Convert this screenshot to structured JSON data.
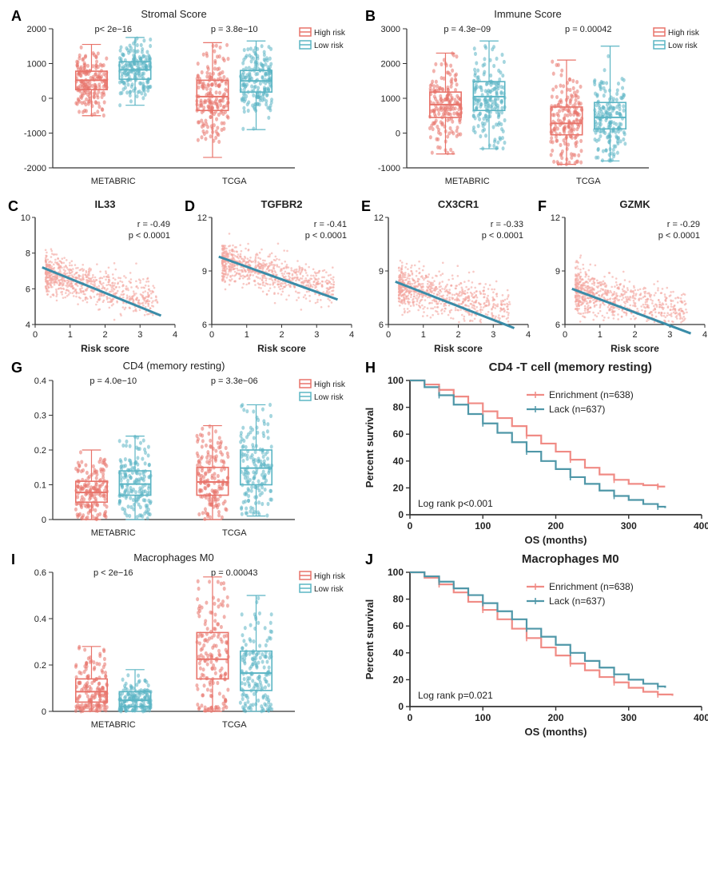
{
  "colors": {
    "high_risk": "#e8736a",
    "low_risk": "#5bb5c4",
    "high_risk_fill": "rgba(232,115,106,0.35)",
    "low_risk_fill": "rgba(91,181,196,0.35)",
    "scatter_point": "#f4a6a0",
    "regression_line": "#3a8ca8",
    "survival_enrich": "#f08b85",
    "survival_lack": "#4f97a8",
    "axis": "#333333",
    "text": "#222222",
    "bg": "#ffffff"
  },
  "fonts": {
    "panel_label": 18,
    "title": 13,
    "axis_label": 12,
    "tick": 11,
    "legend": 10,
    "p_value": 11,
    "stat": 11
  },
  "panels": {
    "A": {
      "type": "boxjitter",
      "title": "Stromal Score",
      "x_categories": [
        "METABRIC",
        "TCGA"
      ],
      "groups": [
        "High risk",
        "Low risk"
      ],
      "p_values": [
        "p< 2e−16",
        "p = 3.8e−10"
      ],
      "ylim": [
        -2000,
        2000
      ],
      "yticks": [
        -2000,
        -1000,
        0,
        1000,
        2000
      ],
      "box_data": {
        "METABRIC": {
          "High risk": {
            "q1": 250,
            "med": 520,
            "q3": 780,
            "whisker_lo": -500,
            "whisker_hi": 1550
          },
          "Low risk": {
            "q1": 550,
            "med": 820,
            "q3": 1050,
            "whisker_lo": -200,
            "whisker_hi": 1750
          }
        },
        "TCGA": {
          "High risk": {
            "q1": -350,
            "med": 50,
            "q3": 520,
            "whisker_lo": -1700,
            "whisker_hi": 1600
          },
          "Low risk": {
            "q1": 180,
            "med": 500,
            "q3": 800,
            "whisker_lo": -900,
            "whisker_hi": 1650
          }
        }
      },
      "n_points_per_group": 180
    },
    "B": {
      "type": "boxjitter",
      "title": "Immune Score",
      "x_categories": [
        "METABRIC",
        "TCGA"
      ],
      "groups": [
        "High risk",
        "Low risk"
      ],
      "p_values": [
        "p = 4.3e−09",
        "p = 0.00042"
      ],
      "ylim": [
        -1000,
        3000
      ],
      "yticks": [
        -1000,
        0,
        1000,
        2000,
        3000
      ],
      "box_data": {
        "METABRIC": {
          "High risk": {
            "q1": 450,
            "med": 820,
            "q3": 1180,
            "whisker_lo": -600,
            "whisker_hi": 2300
          },
          "Low risk": {
            "q1": 650,
            "med": 1050,
            "q3": 1480,
            "whisker_lo": -450,
            "whisker_hi": 2650
          }
        },
        "TCGA": {
          "High risk": {
            "q1": -50,
            "med": 280,
            "q3": 750,
            "whisker_lo": -900,
            "whisker_hi": 2100
          },
          "Low risk": {
            "q1": 120,
            "med": 450,
            "q3": 880,
            "whisker_lo": -800,
            "whisker_hi": 2500
          }
        }
      },
      "n_points_per_group": 180
    },
    "C": {
      "type": "scatter",
      "title": "IL33",
      "xlabel": "Risk score",
      "xlim": [
        0,
        4
      ],
      "xticks": [
        0,
        1,
        2,
        3,
        4
      ],
      "ylim": [
        4,
        10
      ],
      "yticks": [
        4,
        6,
        8,
        10
      ],
      "r": "r = -0.49",
      "p": "p < 0.0001",
      "line": {
        "x1": 0.2,
        "y1": 7.2,
        "x2": 3.6,
        "y2": 4.5
      },
      "n_points": 800,
      "cloud_yspread": 1.2,
      "cloud_ycenter_start": 7.0,
      "cloud_ycenter_end": 5.0
    },
    "D": {
      "type": "scatter",
      "title": "TGFBR2",
      "xlabel": "Risk score",
      "xlim": [
        0,
        4
      ],
      "xticks": [
        0,
        1,
        2,
        3,
        4
      ],
      "ylim": [
        6,
        12
      ],
      "yticks": [
        6,
        9,
        12
      ],
      "r": "r = -0.41",
      "p": "p < 0.0001",
      "line": {
        "x1": 0.2,
        "y1": 9.8,
        "x2": 3.6,
        "y2": 7.4
      },
      "n_points": 800,
      "cloud_yspread": 1.1,
      "cloud_ycenter_start": 9.7,
      "cloud_ycenter_end": 7.8
    },
    "E": {
      "type": "scatter",
      "title": "CX3CR1",
      "xlabel": "Risk score",
      "xlim": [
        0,
        4
      ],
      "xticks": [
        0,
        1,
        2,
        3,
        4
      ],
      "ylim": [
        6,
        12
      ],
      "yticks": [
        6,
        9,
        12
      ],
      "r": "r = -0.33",
      "p": "p < 0.0001",
      "line": {
        "x1": 0.2,
        "y1": 8.4,
        "x2": 3.6,
        "y2": 5.8
      },
      "n_points": 800,
      "cloud_yspread": 1.3,
      "cloud_ycenter_start": 8.3,
      "cloud_ycenter_end": 6.5
    },
    "F": {
      "type": "scatter",
      "title": "GZMK",
      "xlabel": "Risk score",
      "xlim": [
        0,
        4
      ],
      "xticks": [
        0,
        1,
        2,
        3,
        4
      ],
      "ylim": [
        6,
        12
      ],
      "yticks": [
        6,
        9,
        12
      ],
      "r": "r = -0.29",
      "p": "p < 0.0001",
      "line": {
        "x1": 0.2,
        "y1": 8.0,
        "x2": 3.6,
        "y2": 5.5
      },
      "n_points": 800,
      "cloud_yspread": 1.4,
      "cloud_ycenter_start": 8.0,
      "cloud_ycenter_end": 6.3
    },
    "G": {
      "type": "boxjitter",
      "title": "CD4 (memory resting)",
      "x_categories": [
        "METABRIC",
        "TCGA"
      ],
      "groups": [
        "High risk",
        "Low risk"
      ],
      "p_values": [
        "p = 4.0e−10",
        "p = 3.3e−06"
      ],
      "ylim": [
        0,
        0.4
      ],
      "yticks": [
        0.0,
        0.1,
        0.2,
        0.3,
        0.4
      ],
      "box_data": {
        "METABRIC": {
          "High risk": {
            "q1": 0.05,
            "med": 0.078,
            "q3": 0.11,
            "whisker_lo": 0,
            "whisker_hi": 0.2
          },
          "Low risk": {
            "q1": 0.07,
            "med": 0.102,
            "q3": 0.14,
            "whisker_lo": 0,
            "whisker_hi": 0.24
          }
        },
        "TCGA": {
          "High risk": {
            "q1": 0.07,
            "med": 0.108,
            "q3": 0.15,
            "whisker_lo": 0,
            "whisker_hi": 0.27
          },
          "Low risk": {
            "q1": 0.1,
            "med": 0.148,
            "q3": 0.2,
            "whisker_lo": 0.01,
            "whisker_hi": 0.33
          }
        }
      },
      "n_points_per_group": 160
    },
    "H": {
      "type": "survival",
      "title": "CD4 -T cell (memory resting)",
      "xlabel": "OS (months)",
      "ylabel": "Percent survival",
      "xlim": [
        0,
        400
      ],
      "xticks": [
        0,
        100,
        200,
        300,
        400
      ],
      "ylim": [
        0,
        100
      ],
      "yticks": [
        0,
        20,
        40,
        60,
        80,
        100
      ],
      "legend": [
        "Enrichment (n=638)",
        "Lack (n=637)"
      ],
      "logrank": "Log rank p<0.001",
      "curve_enrich": [
        [
          0,
          100
        ],
        [
          20,
          97
        ],
        [
          40,
          93
        ],
        [
          60,
          88
        ],
        [
          80,
          83
        ],
        [
          100,
          77
        ],
        [
          120,
          72
        ],
        [
          140,
          66
        ],
        [
          160,
          59
        ],
        [
          180,
          53
        ],
        [
          200,
          47
        ],
        [
          220,
          41
        ],
        [
          240,
          35
        ],
        [
          260,
          30
        ],
        [
          280,
          26
        ],
        [
          300,
          23
        ],
        [
          320,
          22
        ],
        [
          340,
          21
        ],
        [
          350,
          21
        ]
      ],
      "curve_lack": [
        [
          0,
          100
        ],
        [
          20,
          95
        ],
        [
          40,
          89
        ],
        [
          60,
          82
        ],
        [
          80,
          75
        ],
        [
          100,
          68
        ],
        [
          120,
          61
        ],
        [
          140,
          54
        ],
        [
          160,
          47
        ],
        [
          180,
          40
        ],
        [
          200,
          34
        ],
        [
          220,
          28
        ],
        [
          240,
          23
        ],
        [
          260,
          18
        ],
        [
          280,
          14
        ],
        [
          300,
          11
        ],
        [
          320,
          8
        ],
        [
          340,
          6
        ],
        [
          350,
          5
        ]
      ]
    },
    "I": {
      "type": "boxjitter",
      "title": "Macrophages M0",
      "x_categories": [
        "METABRIC",
        "TCGA"
      ],
      "groups": [
        "High risk",
        "Low risk"
      ],
      "p_values": [
        "p < 2e−16",
        "p = 0.00043"
      ],
      "ylim": [
        0,
        0.6
      ],
      "yticks": [
        0.0,
        0.2,
        0.4,
        0.6
      ],
      "box_data": {
        "METABRIC": {
          "High risk": {
            "q1": 0.04,
            "med": 0.085,
            "q3": 0.14,
            "whisker_lo": 0,
            "whisker_hi": 0.28
          },
          "Low risk": {
            "q1": 0.02,
            "med": 0.048,
            "q3": 0.085,
            "whisker_lo": 0,
            "whisker_hi": 0.18
          }
        },
        "TCGA": {
          "High risk": {
            "q1": 0.14,
            "med": 0.225,
            "q3": 0.34,
            "whisker_lo": 0,
            "whisker_hi": 0.58
          },
          "Low risk": {
            "q1": 0.09,
            "med": 0.165,
            "q3": 0.26,
            "whisker_lo": 0,
            "whisker_hi": 0.5
          }
        }
      },
      "n_points_per_group": 160
    },
    "J": {
      "type": "survival",
      "title": "Macrophages M0",
      "xlabel": "OS (months)",
      "ylabel": "Percent survival",
      "xlim": [
        0,
        400
      ],
      "xticks": [
        0,
        100,
        200,
        300,
        400
      ],
      "ylim": [
        0,
        100
      ],
      "yticks": [
        0,
        20,
        40,
        60,
        80,
        100
      ],
      "legend": [
        "Enrichment (n=638)",
        "Lack (n=637)"
      ],
      "logrank": "Log rank p=0.021",
      "curve_enrich": [
        [
          0,
          100
        ],
        [
          20,
          96
        ],
        [
          40,
          91
        ],
        [
          60,
          85
        ],
        [
          80,
          78
        ],
        [
          100,
          72
        ],
        [
          120,
          65
        ],
        [
          140,
          58
        ],
        [
          160,
          51
        ],
        [
          180,
          44
        ],
        [
          200,
          38
        ],
        [
          220,
          32
        ],
        [
          240,
          27
        ],
        [
          260,
          22
        ],
        [
          280,
          18
        ],
        [
          300,
          14
        ],
        [
          320,
          11
        ],
        [
          340,
          9
        ],
        [
          360,
          8
        ]
      ],
      "curve_lack": [
        [
          0,
          100
        ],
        [
          20,
          97
        ],
        [
          40,
          93
        ],
        [
          60,
          88
        ],
        [
          80,
          83
        ],
        [
          100,
          77
        ],
        [
          120,
          71
        ],
        [
          140,
          65
        ],
        [
          160,
          58
        ],
        [
          180,
          52
        ],
        [
          200,
          46
        ],
        [
          220,
          40
        ],
        [
          240,
          34
        ],
        [
          260,
          29
        ],
        [
          280,
          24
        ],
        [
          300,
          20
        ],
        [
          320,
          17
        ],
        [
          340,
          15
        ],
        [
          350,
          14
        ]
      ]
    }
  }
}
